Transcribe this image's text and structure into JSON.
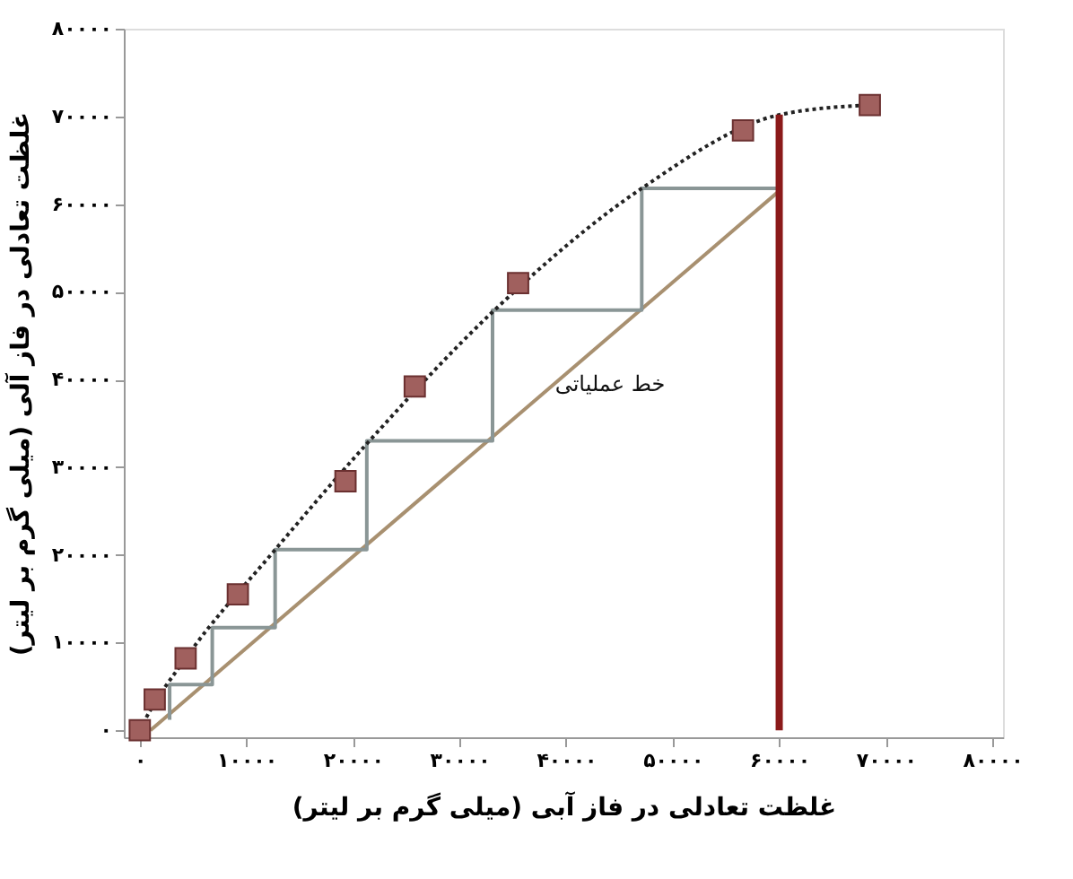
{
  "chart_data": {
    "type": "line",
    "xlabel": "غلظت تعادلی در فاز آبی (میلی گرم بر لیتر)",
    "ylabel": "غلظت تعادلی در فاز آلی (میلی گرم بر لیتر)",
    "xlim": [
      -1500,
      81000
    ],
    "ylim": [
      -800,
      80000
    ],
    "xticks": [
      {
        "value": 0,
        "label": "۰"
      },
      {
        "value": 10000,
        "label": "۱۰۰۰۰"
      },
      {
        "value": 20000,
        "label": "۲۰۰۰۰"
      },
      {
        "value": 30000,
        "label": "۳۰۰۰۰"
      },
      {
        "value": 40000,
        "label": "۴۰۰۰۰"
      },
      {
        "value": 50000,
        "label": "۵۰۰۰۰"
      },
      {
        "value": 60000,
        "label": "۶۰۰۰۰"
      },
      {
        "value": 70000,
        "label": "۷۰۰۰۰"
      },
      {
        "value": 80000,
        "label": "۸۰۰۰۰"
      }
    ],
    "yticks": [
      {
        "value": 0,
        "label": "۰"
      },
      {
        "value": 10000,
        "label": "۱۰۰۰۰"
      },
      {
        "value": 20000,
        "label": "۲۰۰۰۰"
      },
      {
        "value": 30000,
        "label": "۳۰۰۰۰"
      },
      {
        "value": 40000,
        "label": "۴۰۰۰۰"
      },
      {
        "value": 50000,
        "label": "۵۰۰۰۰"
      },
      {
        "value": 60000,
        "label": "۶۰۰۰۰"
      },
      {
        "value": 70000,
        "label": "۷۰۰۰۰"
      },
      {
        "value": 80000,
        "label": "۸۰۰۰۰"
      }
    ],
    "grid": false,
    "series": [
      {
        "color": "#a89070",
        "line_style": "solid",
        "x": [
          1000,
          60000
        ],
        "values": [
          0,
          61500
        ]
      },
      {
        "color": "#8a9696",
        "line_style": "solid",
        "x": [
          60000,
          47100,
          47100,
          33100,
          33100,
          21300,
          21300,
          12700,
          12700,
          6800,
          6800,
          2800,
          2800
        ],
        "values": [
          61800,
          61800,
          47900,
          47900,
          33000,
          33000,
          20600,
          20600,
          11700,
          11700,
          5200,
          5200,
          1200
        ]
      },
      {
        "color": "#222222",
        "line_style": "dotted",
        "x": [
          0,
          500,
          4300,
          12500,
          21400,
          33100,
          47100,
          60100,
          68500
        ],
        "values": [
          0,
          1200,
          8200,
          20300,
          32800,
          47700,
          61800,
          70200,
          71300
        ]
      },
      {
        "color": "#8b1a1a",
        "line_style": "solid",
        "x": [
          60000,
          60000
        ],
        "values": [
          0,
          70200
        ]
      },
      {
        "type": "scatter",
        "color": "#a0605e",
        "marker": "square",
        "x": [
          0,
          1400,
          4300,
          9200,
          19300,
          25800,
          35500,
          56600,
          68500
        ],
        "values": [
          0,
          3500,
          8200,
          15500,
          28400,
          39200,
          51000,
          68400,
          71300
        ]
      }
    ],
    "annotations": [
      "خط عملیاتی"
    ]
  }
}
